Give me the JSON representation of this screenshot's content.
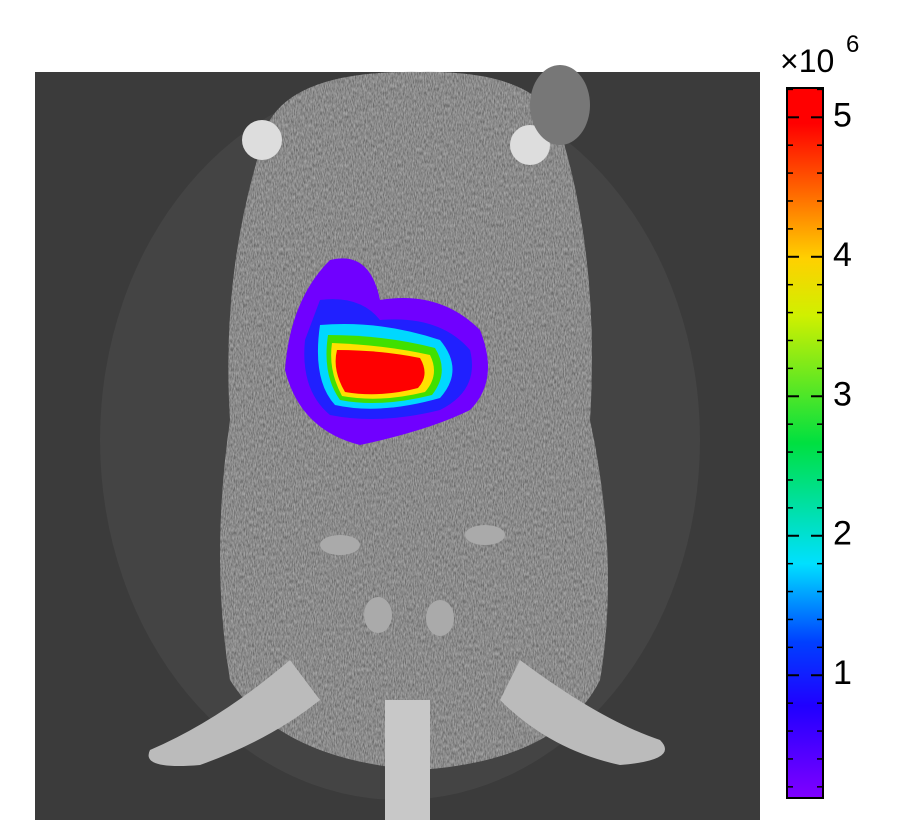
{
  "colorbar": {
    "multiplier": {
      "base": "×10",
      "exponent": "6"
    },
    "range": [
      0.12,
      5.21
    ],
    "ticks": [
      1,
      2,
      3,
      4,
      5
    ],
    "minor_ticks": [
      0.2,
      0.4,
      0.6,
      0.8,
      1.2,
      1.4,
      1.6,
      1.8,
      2.2,
      2.4,
      2.6,
      2.8,
      3.2,
      3.4,
      3.6,
      3.8,
      4.2,
      4.4,
      4.6,
      4.8,
      5.2
    ]
  }
}
